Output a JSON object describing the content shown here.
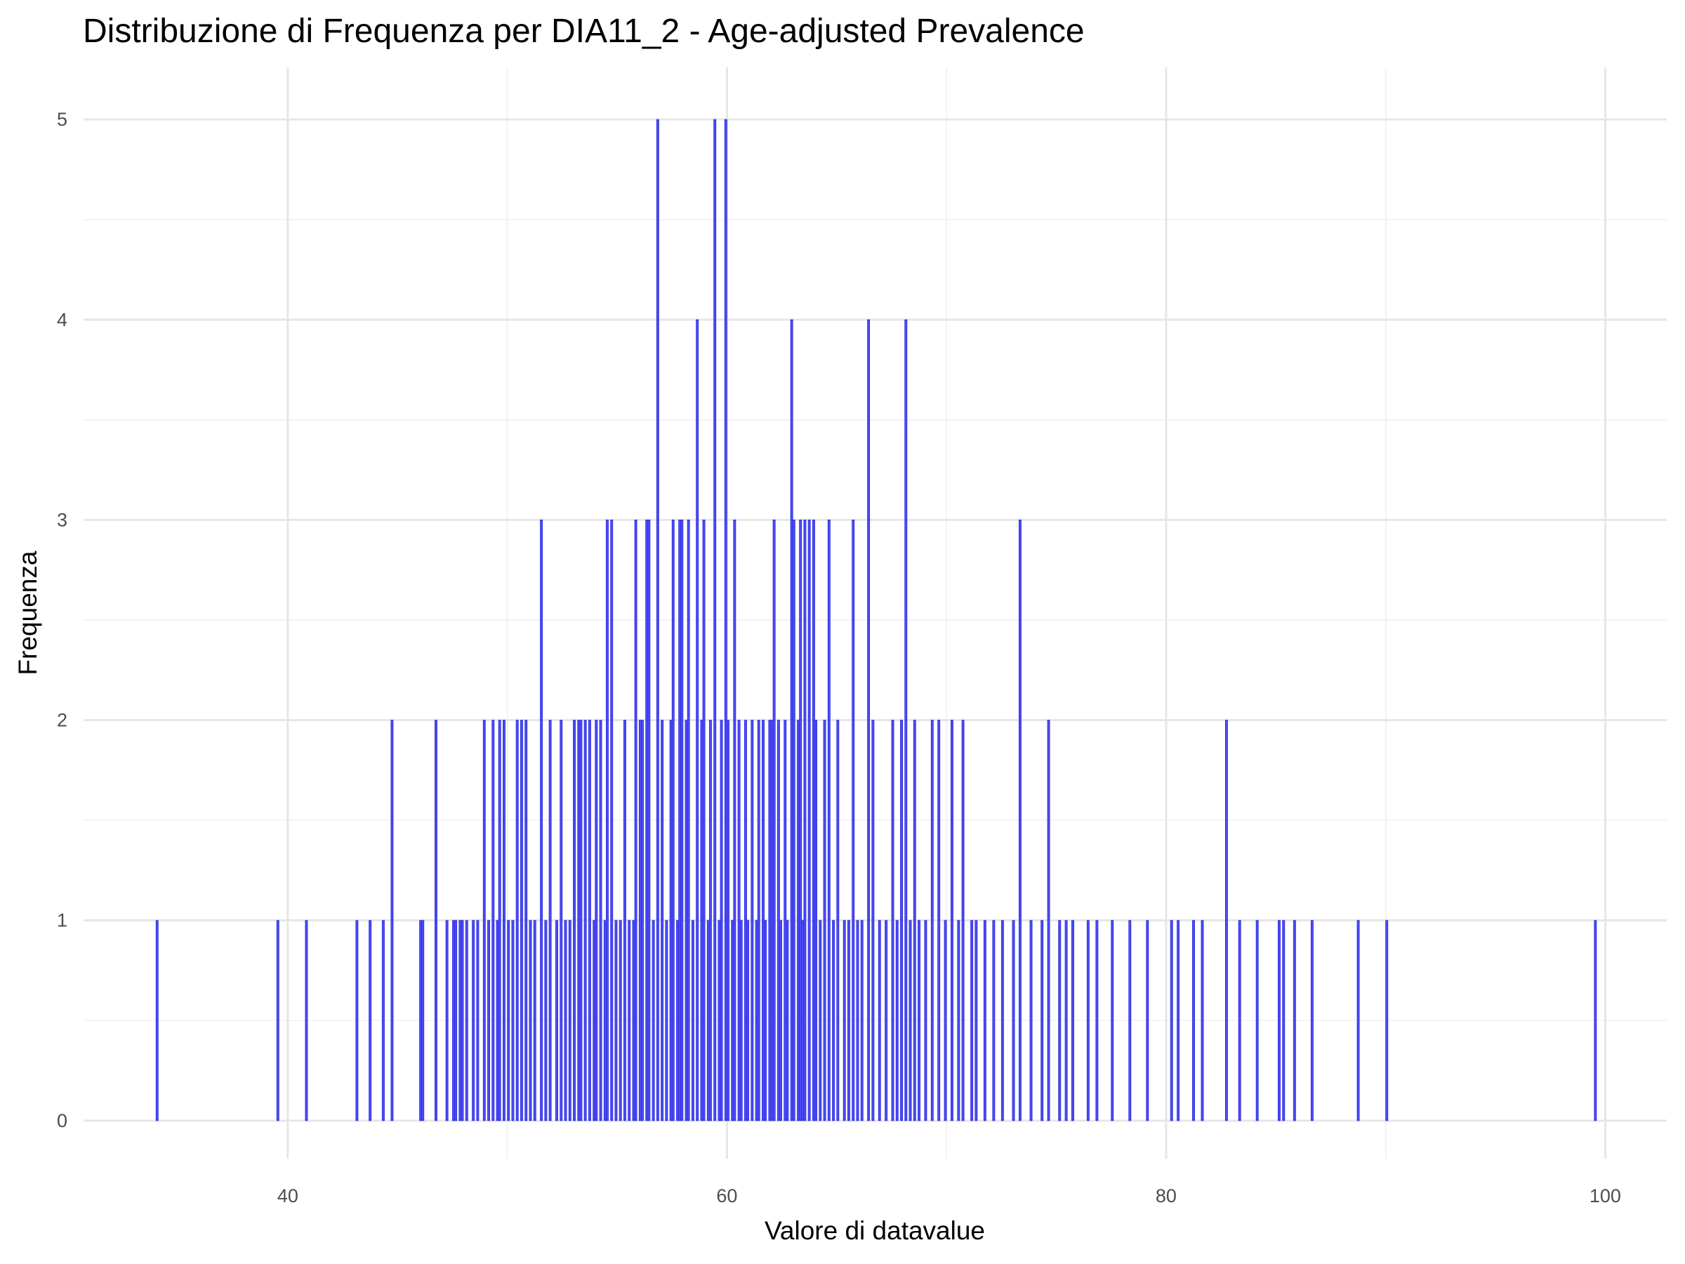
{
  "chart_data": {
    "type": "histogram",
    "title": "Distribuzione di Frequenza per DIA11_2 - Age-adjusted Prevalence",
    "xlabel": "Valore di datavalue",
    "ylabel": "Frequenza",
    "binwidth": 0.1,
    "x": [
      34.0,
      39.5,
      40.8,
      43.1,
      43.7,
      44.3,
      44.7,
      46.0,
      46.1,
      46.7,
      47.2,
      47.5,
      47.6,
      47.8,
      47.9,
      48.1,
      48.4,
      48.6,
      48.9,
      49.1,
      49.3,
      49.5,
      49.6,
      49.8,
      50.0,
      50.2,
      50.4,
      50.6,
      50.8,
      51.0,
      51.2,
      51.5,
      51.7,
      51.9,
      52.2,
      52.4,
      52.6,
      52.8,
      53.0,
      53.2,
      53.3,
      53.5,
      53.7,
      53.9,
      54.0,
      54.2,
      54.4,
      54.5,
      54.7,
      54.9,
      55.1,
      55.3,
      55.5,
      55.7,
      55.8,
      56.0,
      56.1,
      56.3,
      56.4,
      56.6,
      56.8,
      57.0,
      57.2,
      57.4,
      57.5,
      57.7,
      57.8,
      57.9,
      58.1,
      58.2,
      58.4,
      58.6,
      58.8,
      58.9,
      59.1,
      59.2,
      59.4,
      59.6,
      59.7,
      59.9,
      60.0,
      60.2,
      60.3,
      60.5,
      60.6,
      60.8,
      60.9,
      61.1,
      61.3,
      61.4,
      61.6,
      61.7,
      61.9,
      62.0,
      62.1,
      62.3,
      62.4,
      62.6,
      62.7,
      62.9,
      63.0,
      63.2,
      63.3,
      63.4,
      63.5,
      63.7,
      63.9,
      64.0,
      64.2,
      64.4,
      64.6,
      64.8,
      65.0,
      65.3,
      65.5,
      65.7,
      65.9,
      66.1,
      66.4,
      66.6,
      66.9,
      67.2,
      67.5,
      67.7,
      67.9,
      68.1,
      68.3,
      68.5,
      68.7,
      69.0,
      69.3,
      69.6,
      69.9,
      70.2,
      70.5,
      70.7,
      71.1,
      71.3,
      71.7,
      72.1,
      72.5,
      73.0,
      73.3,
      73.8,
      74.3,
      74.6,
      75.1,
      75.4,
      75.7,
      76.4,
      76.8,
      77.5,
      78.3,
      79.1,
      80.2,
      80.5,
      81.2,
      81.6,
      82.7,
      83.3,
      84.1,
      85.1,
      85.3,
      85.8,
      86.6,
      88.7,
      90.0,
      99.5
    ],
    "values": [
      1,
      1,
      1,
      1,
      1,
      1,
      2,
      1,
      1,
      2,
      1,
      1,
      1,
      1,
      1,
      1,
      1,
      1,
      2,
      1,
      2,
      1,
      2,
      2,
      1,
      1,
      2,
      2,
      2,
      1,
      1,
      3,
      1,
      2,
      1,
      2,
      1,
      1,
      2,
      2,
      2,
      2,
      2,
      1,
      2,
      2,
      1,
      3,
      3,
      1,
      1,
      2,
      1,
      1,
      3,
      2,
      2,
      3,
      3,
      1,
      5,
      2,
      1,
      2,
      3,
      1,
      3,
      3,
      2,
      3,
      1,
      4,
      2,
      3,
      1,
      2,
      5,
      1,
      2,
      5,
      2,
      1,
      3,
      2,
      1,
      2,
      1,
      2,
      1,
      2,
      2,
      1,
      2,
      2,
      3,
      2,
      1,
      2,
      1,
      4,
      3,
      2,
      3,
      1,
      3,
      3,
      3,
      2,
      1,
      2,
      3,
      1,
      2,
      1,
      1,
      3,
      1,
      1,
      4,
      2,
      1,
      1,
      2,
      1,
      2,
      4,
      1,
      2,
      1,
      1,
      2,
      2,
      1,
      2,
      1,
      2,
      1,
      1,
      1,
      1,
      1,
      1,
      3,
      1,
      1,
      2,
      1,
      1,
      1,
      1,
      1,
      1,
      1,
      1,
      1,
      1,
      1,
      1,
      2,
      1,
      1,
      1,
      1,
      1,
      1,
      1,
      1,
      1
    ],
    "color": "#4b4bf5",
    "edgecolor": "#2d2de0",
    "xlim": [
      30.7,
      102.8
    ],
    "xticks": [
      40,
      60,
      80,
      100
    ],
    "xminor": [
      50,
      70,
      90
    ],
    "ylim": [
      -0.19,
      5.26
    ],
    "yticks": [
      0,
      1,
      2,
      3,
      4,
      5
    ],
    "yminor": [
      0.5,
      1.5,
      2.5,
      3.5,
      4.5
    ],
    "grid": true
  }
}
